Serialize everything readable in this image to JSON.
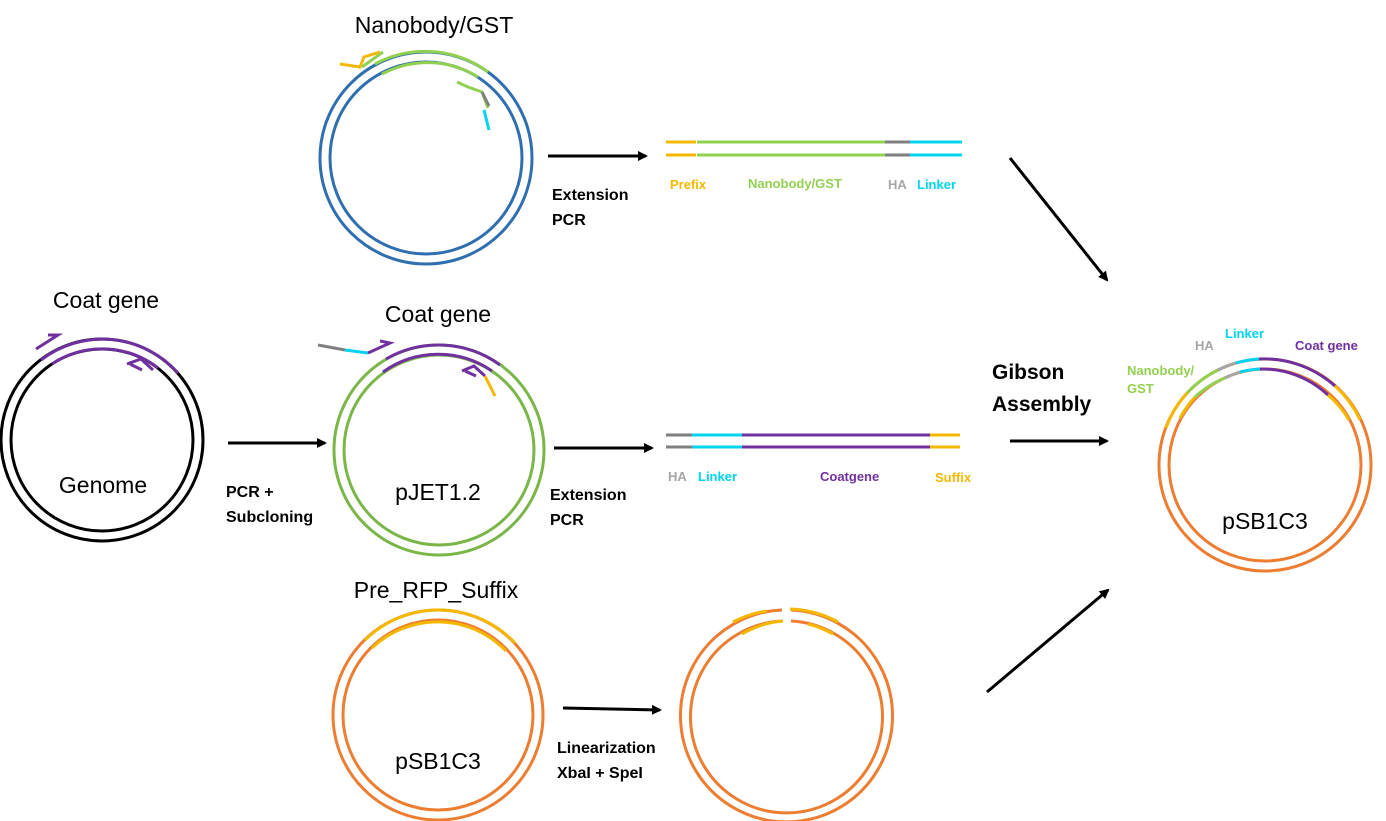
{
  "colors": {
    "blue": "#2f6fb0",
    "green": "#7ab648",
    "black": "#000000",
    "purple": "#7030a0",
    "orange": "#ed7d31",
    "yellow": "#f5b800",
    "cyan": "#00d4ee",
    "gray": "#7f7f7f",
    "lightgreen": "#92d050",
    "lightgray": "#a6a6a6"
  },
  "plasmids": {
    "nanobody": {
      "title": "Nanobody/GST"
    },
    "genome": {
      "title": "Coat gene",
      "label": "Genome"
    },
    "pjet": {
      "title": "Coat gene",
      "label": "pJET1.2"
    },
    "presuffix": {
      "title": "Pre_RFP_Suffix",
      "label": "pSB1C3"
    },
    "linearized": {},
    "final": {
      "label": "pSB1C3"
    }
  },
  "steps": {
    "extension_pcr_1": [
      "Extension",
      "PCR"
    ],
    "pcr_subcloning": [
      "PCR +",
      "Subcloning"
    ],
    "extension_pcr_2": [
      "Extension",
      "PCR"
    ],
    "linearization": [
      "Linearization",
      "XbaI + SpeI"
    ],
    "gibson": [
      "Gibson",
      "Assembly"
    ]
  },
  "fragment1": {
    "labels": {
      "prefix": "Prefix",
      "nanobody": "Nanobody/GST",
      "ha": "HA",
      "linker": "Linker"
    }
  },
  "fragment2": {
    "labels": {
      "ha": "HA",
      "linker": "Linker",
      "coatgene": "Coatgene",
      "suffix": "Suffix"
    }
  },
  "final_labels": {
    "ha": "HA",
    "linker": "Linker",
    "coatgene": "Coat gene",
    "nanobody_1": "Nanobody/",
    "nanobody_2": "GST"
  }
}
